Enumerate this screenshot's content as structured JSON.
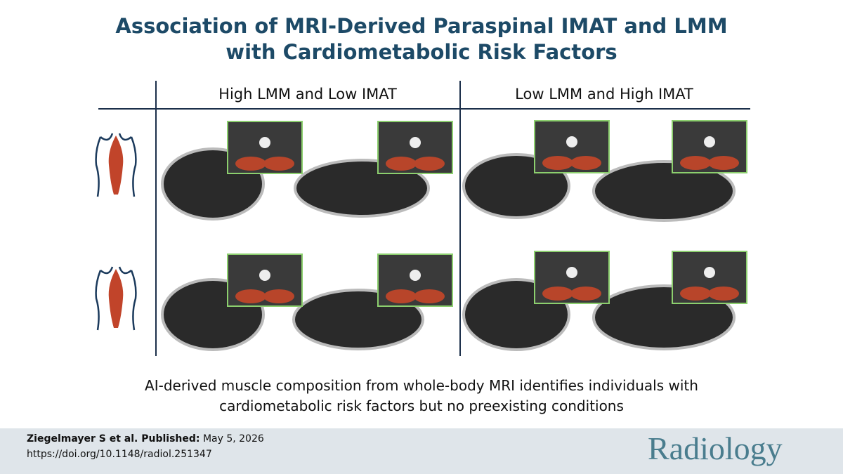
{
  "title": [
    "Association of MRI-Derived Paraspinal IMAT and LMM",
    "with Cardiometabolic Risk Factors"
  ],
  "columns": [
    "High LMM and Low IMAT",
    "Low LMM and High IMAT"
  ],
  "caption": [
    "AI-derived muscle composition from whole-body MRI identifies individuals with",
    "cardiometabolic risk factors but no preexisting conditions"
  ],
  "footer": {
    "authors": "Ziegelmayer S et al. Published:",
    "date": "May 5, 2026",
    "doi": "https://doi.org/10.1148/radiol.251347",
    "journal": "Radiology"
  }
}
